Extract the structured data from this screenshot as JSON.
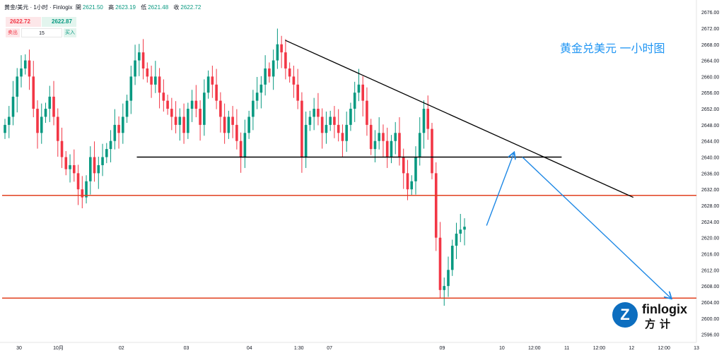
{
  "header": {
    "symbol": "黄金/美元 · 1小时 · Finlogix",
    "open_label": "開",
    "open": "2621.50",
    "high_label": "高",
    "high": "2623.19",
    "low_label": "低",
    "low": "2621.48",
    "close_label": "收",
    "close": "2622.72"
  },
  "trade": {
    "sell_price": "2622.72",
    "buy_price": "2622.87",
    "sell_label": "卖出",
    "buy_label": "买入",
    "quantity": "15"
  },
  "title": "黄金兑美元 一小时图",
  "logo": {
    "brand": "finlogix",
    "brand_cn": "方计"
  },
  "chart_data": {
    "type": "candlestick",
    "ylim": [
      2594,
      2679
    ],
    "y_ticks": [
      "2676.00",
      "2672.00",
      "2668.00",
      "2664.00",
      "2660.00",
      "2656.00",
      "2652.00",
      "2648.00",
      "2644.00",
      "2640.00",
      "2636.00",
      "2632.00",
      "2628.00",
      "2624.00",
      "2620.00",
      "2616.00",
      "2612.00",
      "2608.00",
      "2604.00",
      "2600.00",
      "2596.00"
    ],
    "x_labels": [
      {
        "label": "30",
        "x": 0
      },
      {
        "label": "10月",
        "x": 23
      },
      {
        "label": "02",
        "x": 60
      },
      {
        "label": "03",
        "x": 98
      },
      {
        "label": "04",
        "x": 135
      },
      {
        "label": "1:30",
        "x": 164
      },
      {
        "label": "07",
        "x": 182
      },
      {
        "label": "09",
        "x": 248
      },
      {
        "label": "10",
        "x": 283
      },
      {
        "label": "12:00",
        "x": 302
      },
      {
        "label": "11",
        "x": 321
      },
      {
        "label": "12:00",
        "x": 340
      },
      {
        "label": "12",
        "x": 359
      },
      {
        "label": "12:00",
        "x": 378
      },
      {
        "label": "13",
        "x": 397
      }
    ],
    "candles_close": [
      2648,
      2650,
      2655,
      2660,
      2662,
      2664,
      2660,
      2652,
      2646,
      2650,
      2652,
      2655,
      2650,
      2644,
      2640,
      2637,
      2638,
      2636,
      2632,
      2630,
      2634,
      2640,
      2636,
      2638,
      2640,
      2642,
      2644,
      2648,
      2646,
      2650,
      2654,
      2660,
      2664,
      2666,
      2662,
      2660,
      2658,
      2660,
      2656,
      2654,
      2652,
      2650,
      2648,
      2650,
      2646,
      2652,
      2654,
      2652,
      2648,
      2656,
      2660,
      2658,
      2654,
      2650,
      2646,
      2650,
      2648,
      2644,
      2640,
      2646,
      2650,
      2654,
      2656,
      2658,
      2662,
      2660,
      2664,
      2668,
      2666,
      2662,
      2660,
      2658,
      2654,
      2640,
      2648,
      2650,
      2652,
      2650,
      2646,
      2648,
      2650,
      2648,
      2646,
      2644,
      2648,
      2652,
      2656,
      2658,
      2654,
      2648,
      2642,
      2644,
      2646,
      2644,
      2640,
      2644,
      2646,
      2640,
      2636,
      2632,
      2634,
      2640,
      2646,
      2652,
      2647,
      2636,
      2620,
      2607,
      2608,
      2612,
      2618,
      2621,
      2622,
      2622.72
    ],
    "support_level": 2630.5,
    "lower_level": 2605,
    "horizontal_line": 2640,
    "trendline": {
      "x0": 156,
      "y0": 2669,
      "x1": 360,
      "y1": 2630
    },
    "projection": [
      {
        "x": 274,
        "y": 2623
      },
      {
        "x": 290,
        "y": 2641
      },
      {
        "x": 295,
        "y": 2640
      },
      {
        "x": 382,
        "y": 2605
      }
    ]
  },
  "colors": {
    "up": "#089981",
    "down": "#f23645",
    "support": "#e0401f",
    "trend": "#000000",
    "projection": "#1e88e5",
    "title": "#2196f3"
  }
}
